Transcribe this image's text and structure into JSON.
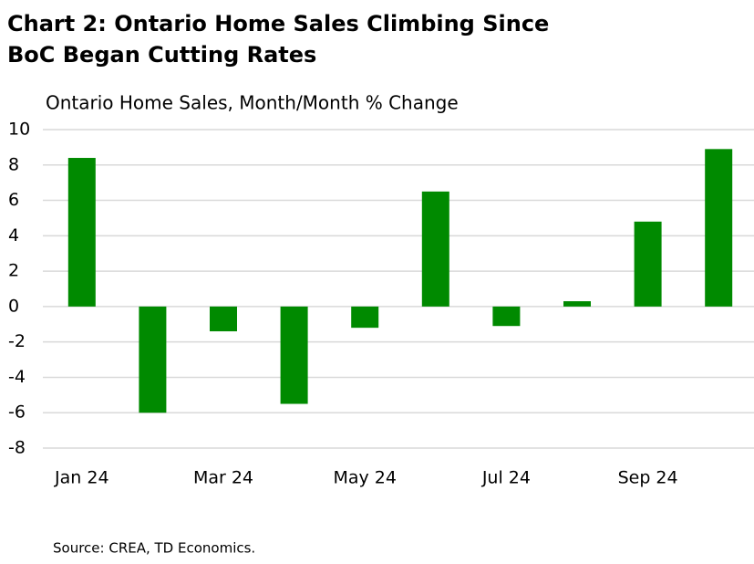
{
  "chart_data": {
    "type": "bar",
    "title": [
      "Chart 2: Ontario Home Sales Climbing Since",
      "BoC Began Cutting Rates"
    ],
    "y_label": "Ontario Home Sales, Month/Month % Change",
    "source": "Source: CREA, TD Economics.",
    "categories": [
      "Jan 24",
      null,
      "Mar 24",
      null,
      "May 24",
      null,
      "Jul 24",
      null,
      "Sep 24",
      null
    ],
    "values": [
      8.4,
      -6.0,
      -1.4,
      -5.5,
      -1.2,
      6.5,
      -1.1,
      0.3,
      4.8,
      8.9
    ],
    "color": "#008a00",
    "ylim": [
      -8,
      10
    ],
    "yticks": [
      10,
      8,
      6,
      4,
      2,
      0,
      -2,
      -4,
      -6,
      -8
    ],
    "grid": true
  }
}
